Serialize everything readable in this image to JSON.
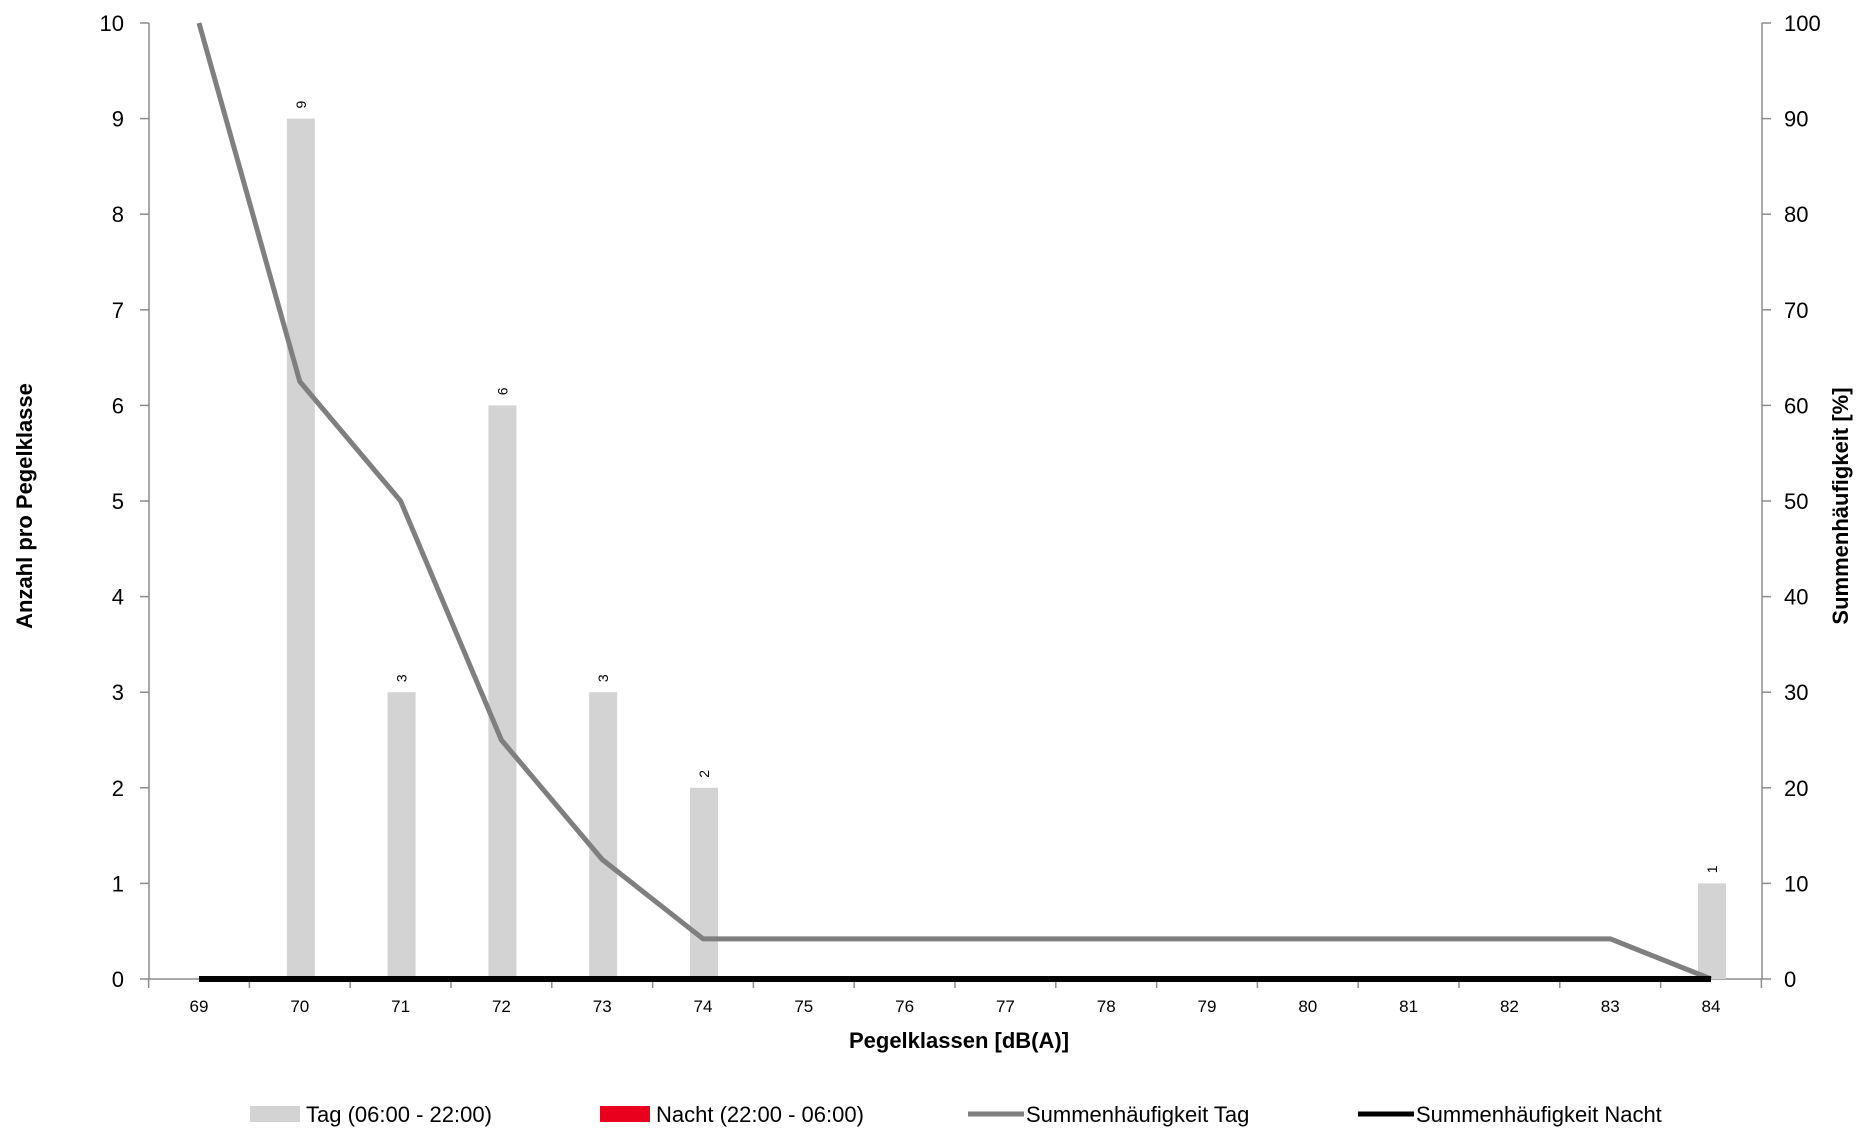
{
  "chart_data": {
    "type": "bar",
    "categories": [
      "69",
      "70",
      "71",
      "72",
      "73",
      "74",
      "75",
      "76",
      "77",
      "78",
      "79",
      "80",
      "81",
      "82",
      "83",
      "84"
    ],
    "series": [
      {
        "name": "Tag (06:00 - 22:00)",
        "type": "bar",
        "axis": "left",
        "color": "#d3d3d3",
        "values": [
          0,
          9,
          3,
          6,
          3,
          2,
          0,
          0,
          0,
          0,
          0,
          0,
          0,
          0,
          0,
          1
        ]
      },
      {
        "name": "Nacht (22:00 - 06:00)",
        "type": "bar",
        "axis": "left",
        "color": "#e8001c",
        "values": [
          0,
          0,
          0,
          0,
          0,
          0,
          0,
          0,
          0,
          0,
          0,
          0,
          0,
          0,
          0,
          0
        ]
      },
      {
        "name": "Summenhäufigkeit Tag",
        "type": "line",
        "axis": "right",
        "color": "#7f7f7f",
        "values": [
          100,
          62.5,
          50,
          25,
          12.5,
          4.2,
          4.2,
          4.2,
          4.2,
          4.2,
          4.2,
          4.2,
          4.2,
          4.2,
          4.2,
          0
        ]
      },
      {
        "name": "Summenhäufigkeit Nacht",
        "type": "line",
        "axis": "right",
        "color": "#000000",
        "values": [
          0,
          0,
          0,
          0,
          0,
          0,
          0,
          0,
          0,
          0,
          0,
          0,
          0,
          0,
          0,
          0
        ]
      }
    ],
    "data_labels": [
      {
        "category": "70",
        "value": "9"
      },
      {
        "category": "71",
        "value": "3"
      },
      {
        "category": "72",
        "value": "6"
      },
      {
        "category": "73",
        "value": "3"
      },
      {
        "category": "74",
        "value": "2"
      },
      {
        "category": "84",
        "value": "1"
      }
    ],
    "xlabel": "Pegelklassen [dB(A)]",
    "ylabel": "Anzahl pro Pegelklasse",
    "y2label": "Summenhäufigkeit [%]",
    "ylim": [
      0,
      10
    ],
    "y2lim": [
      0,
      100
    ],
    "yticks": [
      "0",
      "1",
      "2",
      "3",
      "4",
      "5",
      "6",
      "7",
      "8",
      "9",
      "10"
    ],
    "y2ticks": [
      "0",
      "10",
      "20",
      "30",
      "40",
      "50",
      "60",
      "70",
      "80",
      "90",
      "100"
    ],
    "grid": false,
    "legend_position": "bottom"
  }
}
